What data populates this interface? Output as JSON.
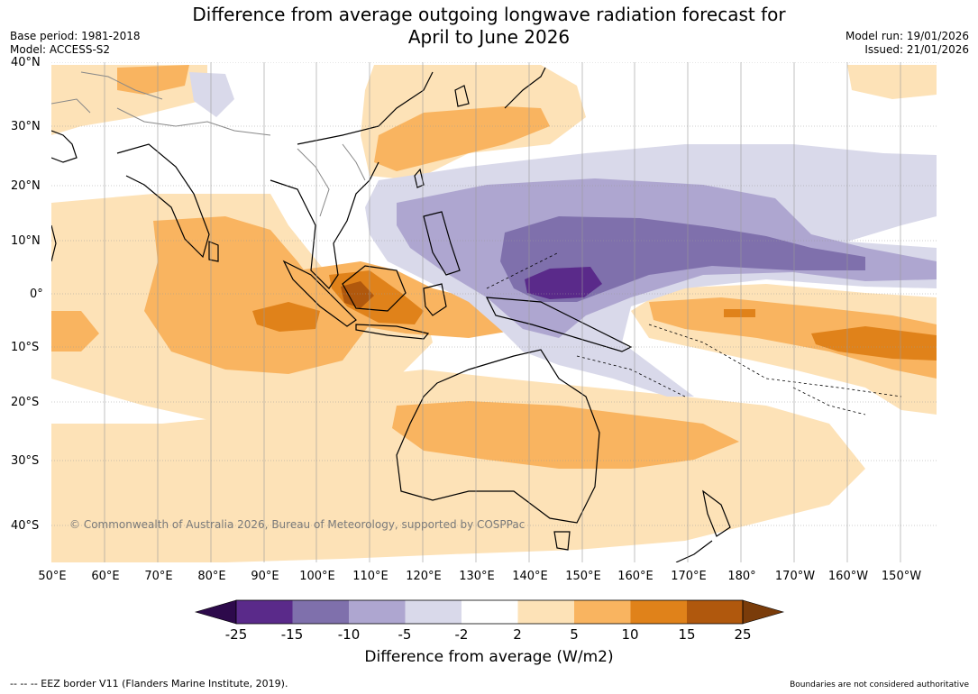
{
  "title": {
    "line1": "Difference from average outgoing longwave radiation forecast for",
    "line2": "April to June 2026"
  },
  "meta": {
    "base_period": "Base period: 1981-2018",
    "model": "Model: ACCESS-S2",
    "model_run": "Model run: 19/01/2026",
    "issued": "Issued: 21/01/2026"
  },
  "map": {
    "lat_labels": [
      "40°N",
      "30°N",
      "20°N",
      "10°N",
      "0°",
      "10°S",
      "20°S",
      "30°S",
      "40°S"
    ],
    "lon_labels": [
      "50°E",
      "60°E",
      "70°E",
      "80°E",
      "90°E",
      "100°E",
      "110°E",
      "120°E",
      "130°E",
      "140°E",
      "150°E",
      "160°E",
      "170°E",
      "180°",
      "170°W",
      "160°W",
      "150°W"
    ],
    "copyright": "© Commonwealth of Australia 2026, Bureau of Meteorology, supported by COSPPac"
  },
  "colorbar": {
    "ticks": [
      "-25",
      "-15",
      "-10",
      "-5",
      "-2",
      "2",
      "5",
      "10",
      "15",
      "25"
    ],
    "colors": [
      "#2d0a4b",
      "#5a2a8a",
      "#7f70ac",
      "#aea6d0",
      "#d9d9ea",
      "#ffffff",
      "#fde2b7",
      "#f9b460",
      "#e0821a",
      "#b0580d",
      "#7a3c0a"
    ],
    "title": "Difference from average (W/m2)"
  },
  "footer": {
    "eez": "--  --  -- EEZ border V11 (Flanders Marine Institute, 2019).",
    "boundaries": "Boundaries are not considered authoritative"
  }
}
